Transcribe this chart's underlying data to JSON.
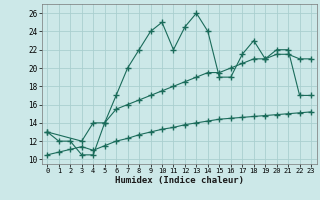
{
  "xlabel": "Humidex (Indice chaleur)",
  "bg_color": "#cce8e8",
  "grid_color": "#aacfcf",
  "line_color": "#1a6b5a",
  "x_wavy": [
    0,
    1,
    2,
    3,
    4,
    5,
    6,
    7,
    8,
    9,
    10,
    11,
    12,
    13,
    14,
    15,
    16,
    17,
    18,
    19,
    20,
    21,
    22,
    23
  ],
  "y_wavy": [
    13,
    12,
    12,
    10.5,
    10.5,
    14,
    17,
    20,
    22,
    24,
    25,
    22,
    24.5,
    26,
    24,
    19,
    19,
    21.5,
    23,
    21,
    22,
    22,
    17,
    17
  ],
  "x_mid": [
    0,
    3,
    4,
    5,
    6,
    7,
    8,
    9,
    10,
    11,
    12,
    13,
    14,
    15,
    16,
    17,
    18,
    19,
    20,
    21,
    22,
    23
  ],
  "y_mid": [
    13,
    12,
    14,
    14,
    15.5,
    16,
    16.5,
    17,
    17.5,
    18,
    18.5,
    19,
    19.5,
    19.5,
    20,
    20.5,
    21,
    21,
    21.5,
    21.5,
    21,
    21
  ],
  "x_low": [
    0,
    1,
    2,
    3,
    4,
    5,
    6,
    7,
    8,
    9,
    10,
    11,
    12,
    13,
    14,
    15,
    16,
    17,
    18,
    19,
    20,
    21,
    22,
    23
  ],
  "y_low": [
    10.5,
    10.8,
    11.1,
    11.4,
    11.0,
    11.5,
    12.0,
    12.3,
    12.7,
    13.0,
    13.3,
    13.5,
    13.8,
    14.0,
    14.2,
    14.4,
    14.5,
    14.6,
    14.7,
    14.8,
    14.9,
    15.0,
    15.1,
    15.2
  ],
  "ylim": [
    9.5,
    27
  ],
  "xlim": [
    -0.5,
    23.5
  ],
  "yticks": [
    10,
    12,
    14,
    16,
    18,
    20,
    22,
    24,
    26
  ],
  "xticks": [
    0,
    1,
    2,
    3,
    4,
    5,
    6,
    7,
    8,
    9,
    10,
    11,
    12,
    13,
    14,
    15,
    16,
    17,
    18,
    19,
    20,
    21,
    22,
    23
  ]
}
